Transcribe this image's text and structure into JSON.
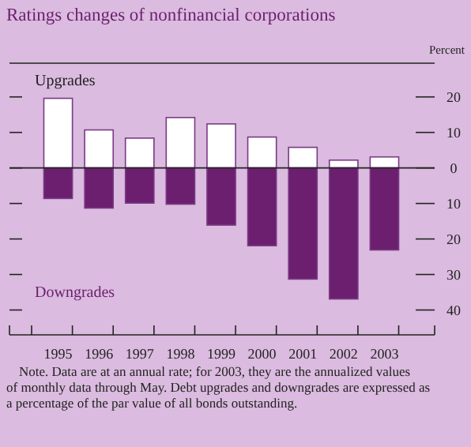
{
  "chart_data": {
    "type": "bar",
    "title": "Ratings changes of nonfinancial corporations",
    "ylabel": "Percent",
    "categories": [
      "1995",
      "1996",
      "1997",
      "1998",
      "1999",
      "2000",
      "2001",
      "2002",
      "2003"
    ],
    "stacked": true,
    "series": [
      {
        "name": "Upgrades",
        "color": "#ffffff",
        "values": [
          19.6,
          10.7,
          8.4,
          14.2,
          12.4,
          8.7,
          5.8,
          2.2,
          3.1
        ]
      },
      {
        "name": "Downgrades",
        "color": "#6b1f6e",
        "values": [
          -8.6,
          -11.3,
          -9.9,
          -10.2,
          -16.1,
          -21.9,
          -31.3,
          -36.9,
          -23.1
        ]
      }
    ],
    "ylim": [
      -47,
      29.5
    ],
    "yticks": [
      {
        "value": -40,
        "label": "40"
      },
      {
        "value": -30,
        "label": "30"
      },
      {
        "value": -20,
        "label": "20"
      },
      {
        "value": -10,
        "label": "10"
      },
      0,
      10,
      20
    ],
    "annotations": [
      "Note. Data are at an annual rate; for 2003, they are the annualized values of monthly data through May. Debt upgrades and downgrades are expressed as a percentage of the par value of all bonds outstanding."
    ]
  }
}
